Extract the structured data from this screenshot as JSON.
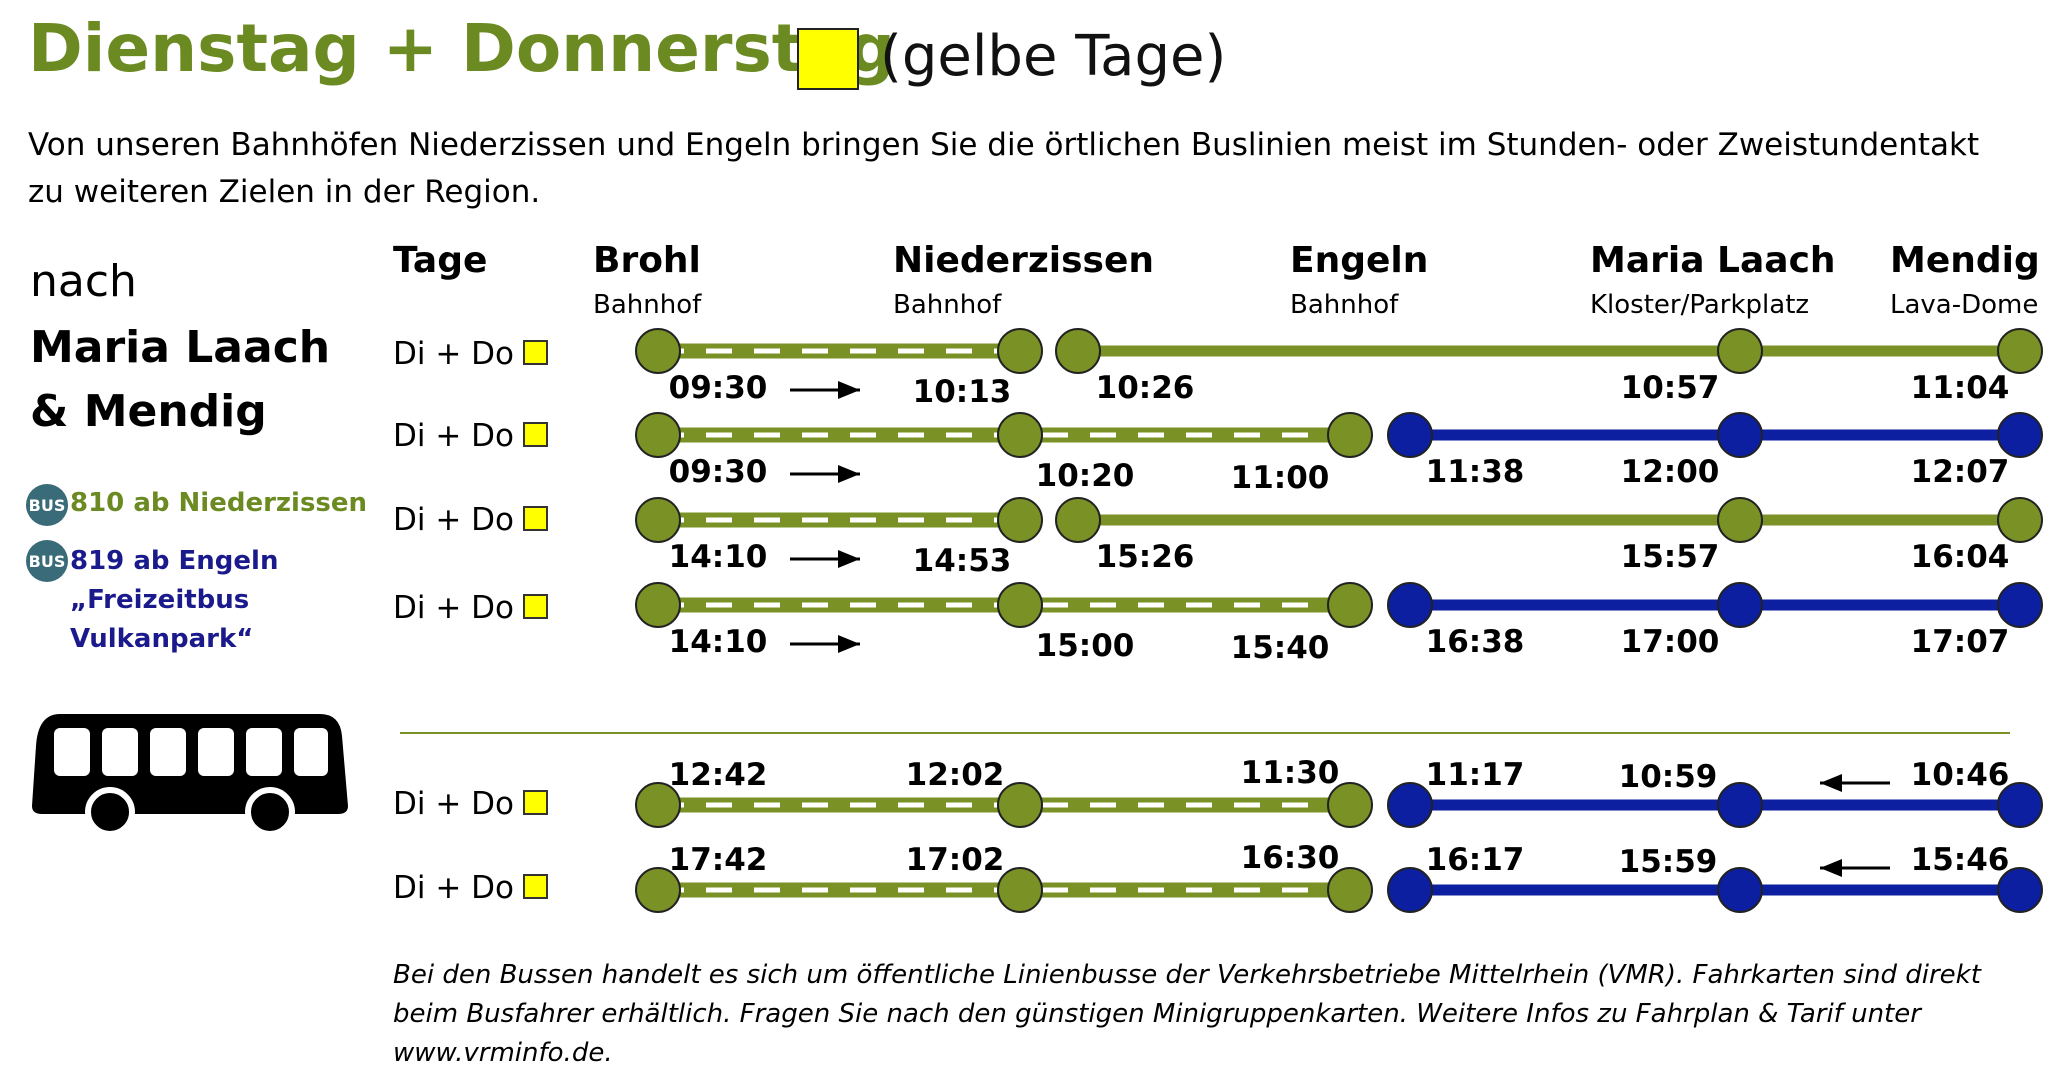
{
  "title": {
    "main": "Dienstag + Donnerstag",
    "sub": "(gelbe Tage)"
  },
  "intro": "Von unseren Bahnhöfen Niederzissen und Engeln bringen Sie die örtlichen Buslinien meist im Stunden- oder Zweistundentakt zu weiteren Zielen in der Region.",
  "destination": {
    "prefix": "nach",
    "name": "Maria Laach & Mendig"
  },
  "legend": {
    "bus_icon_text": "BUS",
    "line810": "810 ab Niederzissen",
    "line819": "819 ab Engeln „Freizeitbus Vulkanpark“"
  },
  "colors": {
    "green": "#7a9126",
    "blue": "#0b1fa0",
    "yellow": "#ffff00",
    "title_green": "#6b8a21"
  },
  "header": {
    "tage": "Tage",
    "stations": [
      {
        "name": "Brohl",
        "sub": "Bahnhof"
      },
      {
        "name": "Niederzissen",
        "sub": "Bahnhof"
      },
      {
        "name": "Engeln",
        "sub": "Bahnhof"
      },
      {
        "name": "Maria Laach",
        "sub": "Kloster/Parkplatz"
      },
      {
        "name": "Mendig",
        "sub": "Lava-Dome"
      }
    ]
  },
  "day_label": "Di + Do",
  "rows": [
    {
      "type": "A",
      "times": [
        "09:30",
        "10:13",
        "10:26",
        "10:57",
        "11:04"
      ]
    },
    {
      "type": "B",
      "times": [
        "09:30",
        "10:20",
        "11:00",
        "11:38",
        "12:00",
        "12:07"
      ]
    },
    {
      "type": "A",
      "times": [
        "14:10",
        "14:53",
        "15:26",
        "15:57",
        "16:04"
      ]
    },
    {
      "type": "B",
      "times": [
        "14:10",
        "15:00",
        "15:40",
        "16:38",
        "17:00",
        "17:07"
      ]
    },
    {
      "type": "R",
      "times": [
        "12:42",
        "12:02",
        "11:30",
        "11:17",
        "10:59",
        "10:46"
      ]
    },
    {
      "type": "R",
      "times": [
        "17:42",
        "17:02",
        "16:30",
        "16:17",
        "15:59",
        "15:46"
      ]
    }
  ],
  "footer": "Bei den Bussen handelt es sich um öffentliche Linienbusse der Verkehrsbetriebe Mittelrhein (VMR). Fahrkarten sind direkt beim Busfahrer erhältlich. Fragen Sie nach den günstigen Minigruppenkarten. Weitere Infos zu Fahrplan & Tarif unter www.vrminfo.de."
}
